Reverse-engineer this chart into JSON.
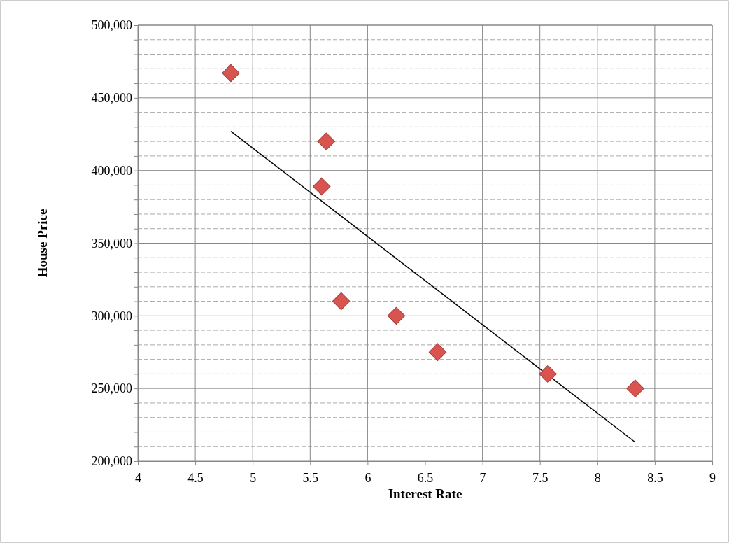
{
  "chart_data": {
    "type": "scatter",
    "xlabel": "Interest Rate",
    "ylabel": "House Price",
    "xlim": [
      4,
      9
    ],
    "xticks": [
      4,
      4.5,
      5,
      5.5,
      6,
      6.5,
      7,
      7.5,
      8,
      8.5,
      9
    ],
    "ylim": [
      200000,
      500000
    ],
    "yticks": [
      {
        "value": 200000,
        "label": "200,000"
      },
      {
        "value": 210000,
        "label": null
      },
      {
        "value": 220000,
        "label": null
      },
      {
        "value": 230000,
        "label": null
      },
      {
        "value": 240000,
        "label": null
      },
      {
        "value": 250000,
        "label": "250,000"
      },
      {
        "value": 260000,
        "label": null
      },
      {
        "value": 270000,
        "label": null
      },
      {
        "value": 280000,
        "label": null
      },
      {
        "value": 290000,
        "label": null
      },
      {
        "value": 300000,
        "label": "300,000"
      },
      {
        "value": 310000,
        "label": null
      },
      {
        "value": 320000,
        "label": null
      },
      {
        "value": 330000,
        "label": null
      },
      {
        "value": 340000,
        "label": null
      },
      {
        "value": 350000,
        "label": "350,000"
      },
      {
        "value": 360000,
        "label": null
      },
      {
        "value": 370000,
        "label": null
      },
      {
        "value": 380000,
        "label": null
      },
      {
        "value": 390000,
        "label": null
      },
      {
        "value": 400000,
        "label": "400,000"
      },
      {
        "value": 410000,
        "label": null
      },
      {
        "value": 420000,
        "label": null
      },
      {
        "value": 430000,
        "label": null
      },
      {
        "value": 440000,
        "label": null
      },
      {
        "value": 450000,
        "label": "450,000"
      },
      {
        "value": 460000,
        "label": null
      },
      {
        "value": 470000,
        "label": null
      },
      {
        "value": 480000,
        "label": null
      },
      {
        "value": 490000,
        "label": null
      },
      {
        "value": 500000,
        "label": "500,000"
      }
    ],
    "grid": true,
    "series": [
      {
        "marker": "diamond",
        "color": "#d9534f",
        "x": [
          4.81,
          5.64,
          5.6,
          5.77,
          6.25,
          6.61,
          7.57,
          8.33
        ],
        "values": [
          467000,
          420000,
          389000,
          310000,
          300000,
          275000,
          260000,
          250000
        ]
      },
      {
        "type": "line",
        "color": "#000000",
        "x": [
          4.81,
          8.33
        ],
        "values": [
          427000,
          213000
        ]
      }
    ]
  }
}
